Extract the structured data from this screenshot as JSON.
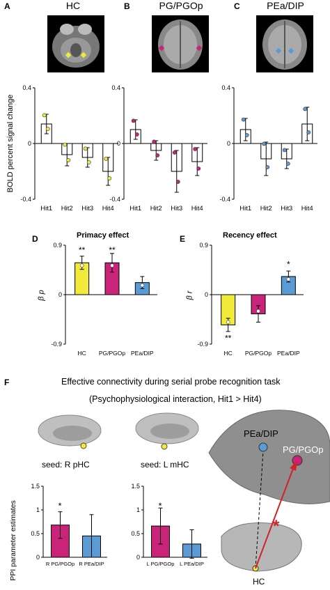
{
  "panelA": {
    "letter": "A",
    "title": "HC"
  },
  "panelB": {
    "letter": "B",
    "title": "PG/PGOp"
  },
  "panelC": {
    "letter": "C",
    "title": "PEa/DIP"
  },
  "topYLabel": "BOLD percent signal change",
  "topYTicks": [
    "0.4",
    "0",
    "-0.4"
  ],
  "topXTicks": [
    "Hit1",
    "Hit2",
    "Hit3",
    "Hit4"
  ],
  "panelD": {
    "letter": "D",
    "title": "Primacy effect",
    "ylabel": "β p",
    "yticks": [
      "0.9",
      "0",
      "-0.9"
    ],
    "xticks": [
      "HC",
      "PG/PGOp",
      "PEa/DIP"
    ],
    "stars": [
      "**",
      "**"
    ]
  },
  "panelE": {
    "letter": "E",
    "title": "Recency effect",
    "ylabel": "β r",
    "yticks": [
      "0.9",
      "0",
      "-0.9"
    ],
    "xticks": [
      "HC",
      "PG/PGOp",
      "PEa/DIP"
    ],
    "stars": [
      "**",
      "*"
    ]
  },
  "panelF": {
    "letter": "F",
    "title1": "Effective connectivity during serial probe recognition task",
    "title2": "(Psychophysiological interaction, Hit1 > Hit4)",
    "seed1": "seed: R pHC",
    "seed2": "seed: L mHC",
    "ylabel": "PPI parameter estimates",
    "yticks": [
      "1.5",
      "1",
      "0.5",
      "0"
    ],
    "left_xticks": [
      "R PG/PGOp",
      "R PEa/DIP"
    ],
    "right_xticks": [
      "L PG/PGOp",
      "L PEa/DIP"
    ],
    "star": "*",
    "brain_labels": {
      "pea": "PEa/DIP",
      "pg": "PG/PGOp",
      "hc": "HC",
      "arrow_star": "*"
    }
  },
  "colors": {
    "hc": "#f2ea3a",
    "pg": "#c9237a",
    "pea": "#5b9bd5"
  },
  "chart_data": [
    {
      "type": "bar",
      "panel": "A",
      "categories": [
        "Hit1",
        "Hit2",
        "Hit3",
        "Hit4"
      ],
      "values": [
        0.14,
        -0.08,
        -0.1,
        -0.2
      ],
      "errors": [
        0.07,
        0.08,
        0.07,
        0.1
      ],
      "ylim": [
        -0.4,
        0.4
      ],
      "ylabel": "BOLD percent signal change"
    },
    {
      "type": "bar",
      "panel": "B",
      "categories": [
        "Hit1",
        "Hit2",
        "Hit3",
        "Hit4"
      ],
      "values": [
        0.1,
        -0.05,
        -0.2,
        -0.13
      ],
      "errors": [
        0.07,
        0.07,
        0.15,
        0.1
      ],
      "ylim": [
        -0.4,
        0.4
      ]
    },
    {
      "type": "bar",
      "panel": "C",
      "categories": [
        "Hit1",
        "Hit2",
        "Hit3",
        "Hit4"
      ],
      "values": [
        0.1,
        -0.11,
        -0.11,
        0.14
      ],
      "errors": [
        0.08,
        0.12,
        0.07,
        0.12
      ],
      "ylim": [
        -0.4,
        0.4
      ]
    },
    {
      "type": "bar",
      "panel": "D",
      "title": "Primacy effect",
      "categories": [
        "HC",
        "PG/PGOp",
        "PEa/DIP"
      ],
      "values": [
        0.58,
        0.58,
        0.22
      ],
      "errors": [
        0.12,
        0.17,
        0.11
      ],
      "ylim": [
        -0.9,
        0.9
      ]
    },
    {
      "type": "bar",
      "panel": "E",
      "title": "Recency effect",
      "categories": [
        "HC",
        "PG/PGOp",
        "PEa/DIP"
      ],
      "values": [
        -0.55,
        -0.35,
        0.33
      ],
      "errors": [
        0.12,
        0.15,
        0.1
      ],
      "ylim": [
        -0.9,
        0.9
      ]
    },
    {
      "type": "bar",
      "panel": "F-left",
      "categories": [
        "R PG/PGOp",
        "R PEa/DIP"
      ],
      "values": [
        0.68,
        0.45
      ],
      "errors": [
        0.28,
        0.45
      ],
      "ylim": [
        0,
        1.5
      ],
      "ylabel": "PPI parameter estimates"
    },
    {
      "type": "bar",
      "panel": "F-right",
      "categories": [
        "L PG/PGOp",
        "L PEa/DIP"
      ],
      "values": [
        0.66,
        0.28
      ],
      "errors": [
        0.38,
        0.3
      ],
      "ylim": [
        0,
        1.5
      ]
    }
  ]
}
